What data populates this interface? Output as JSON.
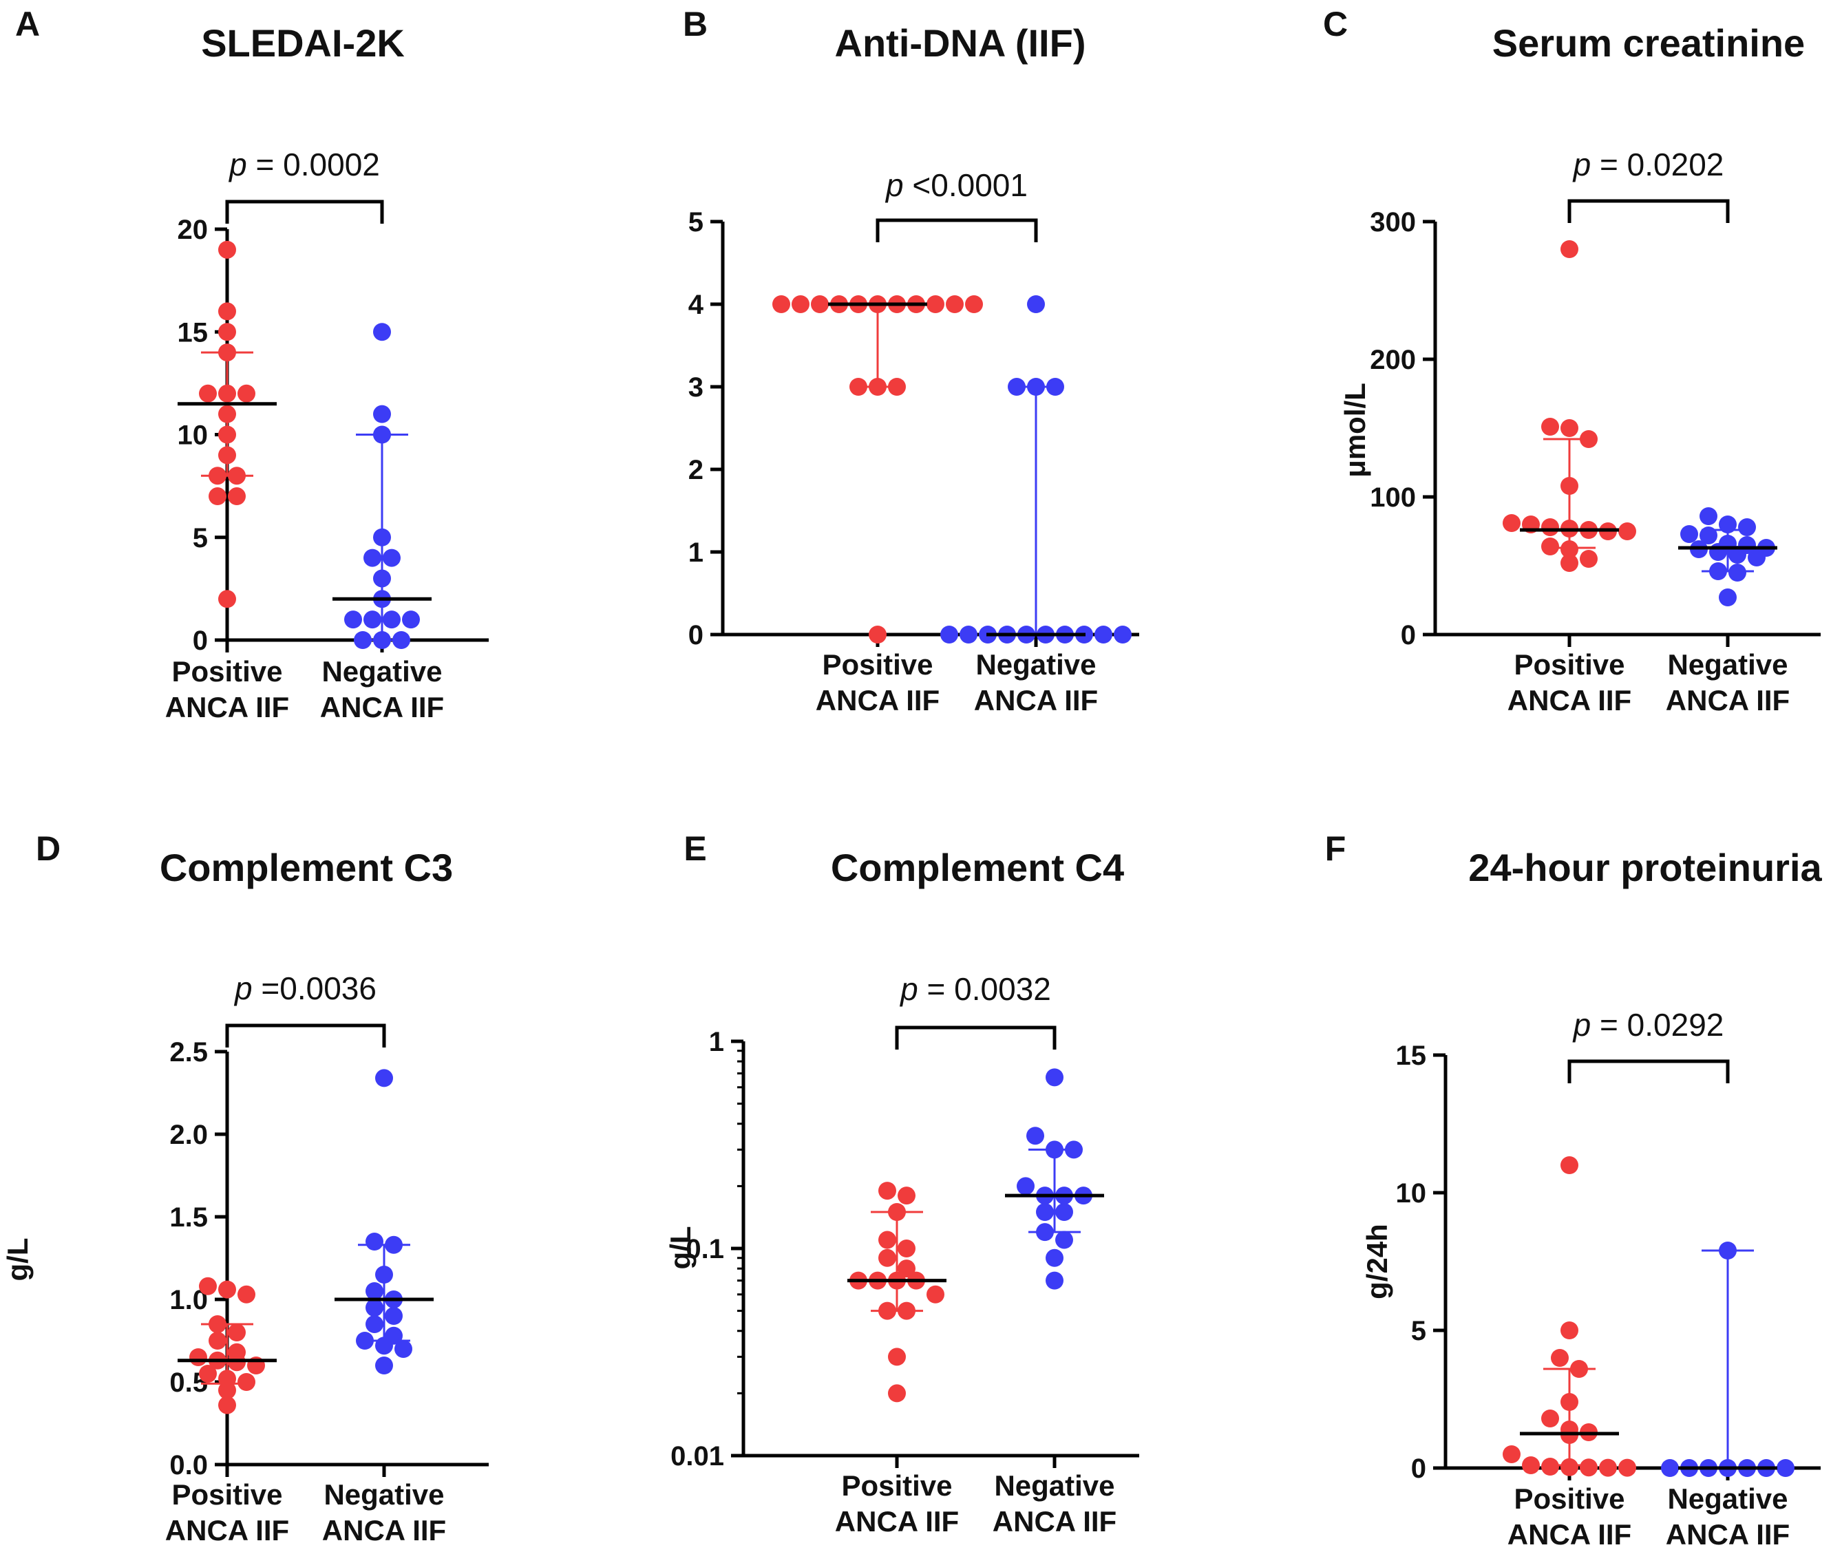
{
  "colors": {
    "positive": "#f03c3c",
    "negative": "#3c3cf5",
    "median": "#000000",
    "axis": "#000000"
  },
  "chart_data": [
    {
      "panel": "A",
      "type": "scatter",
      "title": "SLEDAI-2K",
      "ylabel": "",
      "yscale": "linear",
      "ylim": [
        0,
        20
      ],
      "yticks": [
        0,
        5,
        10,
        15,
        20
      ],
      "categories": [
        "Positive ANCA IIF",
        "Negative ANCA IIF"
      ],
      "category_lines": [
        [
          "Positive",
          "ANCA IIF"
        ],
        [
          "Negative",
          "ANCA IIF"
        ]
      ],
      "p_prefix": "p",
      "p_value": " = 0.0002",
      "series": [
        {
          "name": "Positive ANCA IIF",
          "median": 11.5,
          "iqr": [
            8,
            14
          ],
          "values": [
            19,
            16,
            15,
            14,
            12,
            12,
            12,
            11,
            10,
            9,
            8,
            8,
            7,
            7,
            2
          ]
        },
        {
          "name": "Negative ANCA IIF",
          "median": 2,
          "iqr": [
            0,
            10
          ],
          "values": [
            15,
            11,
            10,
            5,
            4,
            4,
            3,
            2,
            1,
            1,
            1,
            1,
            0,
            0,
            0
          ]
        }
      ]
    },
    {
      "panel": "B",
      "type": "scatter",
      "title": "Anti-DNA (IIF)",
      "ylabel": "",
      "yscale": "linear",
      "ylim": [
        0,
        5
      ],
      "yticks": [
        0,
        1,
        2,
        3,
        4,
        5
      ],
      "categories": [
        "Positive ANCA IIF",
        "Negative ANCA IIF"
      ],
      "category_lines": [
        [
          "Positive",
          "ANCA IIF"
        ],
        [
          "Negative",
          "ANCA IIF"
        ]
      ],
      "p_prefix": "p",
      "p_value": " <0.0001",
      "series": [
        {
          "name": "Positive ANCA IIF",
          "median": 4,
          "iqr": [
            3,
            4
          ],
          "values": [
            4,
            4,
            4,
            4,
            4,
            4,
            4,
            4,
            4,
            4,
            4,
            3,
            3,
            3,
            0
          ]
        },
        {
          "name": "Negative ANCA IIF",
          "median": 0,
          "iqr": [
            0,
            3
          ],
          "values": [
            4,
            3,
            3,
            3,
            0,
            0,
            0,
            0,
            0,
            0,
            0,
            0,
            0,
            0
          ]
        }
      ]
    },
    {
      "panel": "C",
      "type": "scatter",
      "title": "Serum creatinine",
      "ylabel": "μmol/L",
      "yscale": "linear",
      "ylim": [
        0,
        300
      ],
      "yticks": [
        0,
        100,
        200,
        300
      ],
      "categories": [
        "Positive ANCA IIF",
        "Negative ANCA IIF"
      ],
      "category_lines": [
        [
          "Positive",
          "ANCA IIF"
        ],
        [
          "Negative",
          "ANCA IIF"
        ]
      ],
      "p_prefix": "p",
      "p_value": " = 0.0202",
      "series": [
        {
          "name": "Positive ANCA IIF",
          "median": 76,
          "iqr": [
            63,
            142
          ],
          "values": [
            280,
            151,
            150,
            142,
            108,
            81,
            80,
            78,
            77,
            76,
            75,
            75,
            64,
            62,
            55,
            52
          ]
        },
        {
          "name": "Negative ANCA IIF",
          "median": 63,
          "iqr": [
            46,
            76
          ],
          "values": [
            86,
            80,
            78,
            73,
            72,
            66,
            65,
            63,
            62,
            60,
            58,
            56,
            46,
            45,
            27
          ]
        }
      ]
    },
    {
      "panel": "D",
      "type": "scatter",
      "title": "Complement C3",
      "ylabel": "g/L",
      "yscale": "linear",
      "ylim": [
        0,
        2.5
      ],
      "yticks": [
        "0.0",
        "0.5",
        "1.0",
        "1.5",
        "2.0",
        "2.5"
      ],
      "categories": [
        "Positive ANCA IIF",
        "Negative ANCA IIF"
      ],
      "category_lines": [
        [
          "Positive",
          "ANCA IIF"
        ],
        [
          "Negative",
          "ANCA IIF"
        ]
      ],
      "p_prefix": "p",
      "p_value": " =0.0036",
      "series": [
        {
          "name": "Positive ANCA IIF",
          "median": 0.63,
          "iqr": [
            0.49,
            0.85
          ],
          "values": [
            1.08,
            1.06,
            1.03,
            0.85,
            0.8,
            0.75,
            0.68,
            0.65,
            0.63,
            0.62,
            0.6,
            0.55,
            0.52,
            0.5,
            0.45,
            0.36
          ]
        },
        {
          "name": "Negative ANCA IIF",
          "median": 1.0,
          "iqr": [
            0.75,
            1.33
          ],
          "values": [
            2.34,
            1.35,
            1.33,
            1.15,
            1.05,
            1.0,
            0.95,
            0.9,
            0.85,
            0.78,
            0.75,
            0.72,
            0.7,
            0.6
          ]
        }
      ]
    },
    {
      "panel": "E",
      "type": "scatter",
      "title": "Complement C4",
      "ylabel": "g/L",
      "yscale": "log",
      "ylim": [
        0.01,
        1
      ],
      "yticks": [
        "0.01",
        "0.1",
        "1"
      ],
      "categories": [
        "Positive ANCA IIF",
        "Negative ANCA IIF"
      ],
      "category_lines": [
        [
          "Positive",
          "ANCA IIF"
        ],
        [
          "Negative",
          "ANCA IIF"
        ]
      ],
      "p_prefix": "p",
      "p_value": " = 0.0032",
      "series": [
        {
          "name": "Positive ANCA IIF",
          "median": 0.07,
          "iqr": [
            0.05,
            0.15
          ],
          "values": [
            0.19,
            0.18,
            0.15,
            0.11,
            0.1,
            0.09,
            0.08,
            0.07,
            0.07,
            0.07,
            0.07,
            0.06,
            0.05,
            0.05,
            0.03,
            0.02
          ]
        },
        {
          "name": "Negative ANCA IIF",
          "median": 0.18,
          "iqr": [
            0.12,
            0.3
          ],
          "values": [
            0.67,
            0.35,
            0.3,
            0.3,
            0.2,
            0.18,
            0.18,
            0.18,
            0.15,
            0.15,
            0.12,
            0.11,
            0.09,
            0.07
          ]
        }
      ]
    },
    {
      "panel": "F",
      "type": "scatter",
      "title": "24-hour proteinuria",
      "ylabel": "g/24h",
      "yscale": "linear",
      "ylim": [
        0,
        15
      ],
      "yticks": [
        0,
        5,
        10,
        15
      ],
      "categories": [
        "Positive ANCA IIF",
        "Negative ANCA IIF"
      ],
      "category_lines": [
        [
          "Positive",
          "ANCA IIF"
        ],
        [
          "Negative",
          "ANCA IIF"
        ]
      ],
      "p_prefix": "p",
      "p_value": " = 0.0292",
      "series": [
        {
          "name": "Positive ANCA IIF",
          "median": 1.25,
          "iqr": [
            0.1,
            3.6
          ],
          "values": [
            11,
            5,
            4,
            3.6,
            2.4,
            1.8,
            1.4,
            1.3,
            1.2,
            0.5,
            0.1,
            0.05,
            0.03,
            0.02,
            0.01,
            0.01
          ]
        },
        {
          "name": "Negative ANCA IIF",
          "median": 0,
          "iqr": [
            0,
            7.9
          ],
          "values": [
            7.9,
            0,
            0,
            0,
            0,
            0,
            0,
            0
          ]
        }
      ]
    }
  ]
}
